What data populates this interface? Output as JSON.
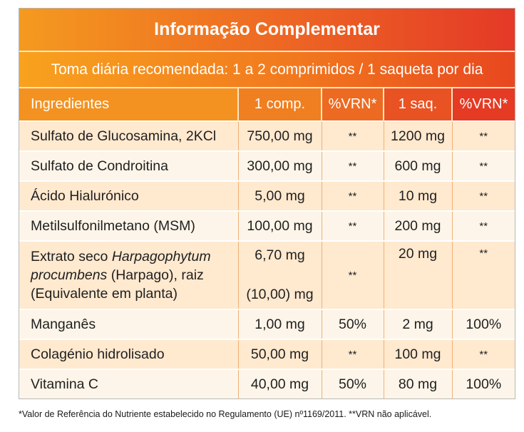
{
  "header": {
    "title": "Informação Complementar",
    "subtitle": "Toma diária recomendada: 1 a 2 comprimidos / 1 saqueta por dia"
  },
  "table": {
    "columns": [
      "Ingredientes",
      "1 comp.",
      "%VRN*",
      "1 saq.",
      "%VRN*"
    ],
    "rows": [
      {
        "ingredient": "Sulfato de Glucosamina, 2KCl",
        "comp": "750,00 mg",
        "vrn_comp": "**",
        "saq": "1200 mg",
        "vrn_saq": "**"
      },
      {
        "ingredient": "Sulfato de Condroitina",
        "comp": "300,00 mg",
        "vrn_comp": "**",
        "saq": "600 mg",
        "vrn_saq": "**"
      },
      {
        "ingredient": "Ácido Hialurónico",
        "comp": "5,00 mg",
        "vrn_comp": "**",
        "saq": "10 mg",
        "vrn_saq": "**"
      },
      {
        "ingredient": "Metilsulfonilmetano (MSM)",
        "comp": "100,00 mg",
        "vrn_comp": "**",
        "saq": "200 mg",
        "vrn_saq": "**"
      },
      {
        "ingredient_prefix": "Extrato seco ",
        "ingredient_italic_1": "Harpagophytum",
        "ingredient_italic_2": "procumbens",
        "ingredient_suffix": " (Harpago), raiz",
        "ingredient_line3": "(Equivalente em planta)",
        "comp": "6,70 mg",
        "comp_equiv": "(10,00) mg",
        "vrn_comp": "**",
        "saq": "20 mg",
        "vrn_saq": "**"
      },
      {
        "ingredient": "Manganês",
        "comp": "1,00 mg",
        "vrn_comp": "50%",
        "saq": "2 mg",
        "vrn_saq": "100%"
      },
      {
        "ingredient": "Colagénio hidrolisado",
        "comp": "50,00 mg",
        "vrn_comp": "**",
        "saq": "100 mg",
        "vrn_saq": "**"
      },
      {
        "ingredient": "Vitamina C",
        "comp": "40,00 mg",
        "vrn_comp": "50%",
        "saq": "80 mg",
        "vrn_saq": "100%"
      }
    ]
  },
  "footnote": "*Valor de Referência do Nutriente estabelecido no Regulamento (UE) nº1169/2011. **VRN não aplicável."
}
